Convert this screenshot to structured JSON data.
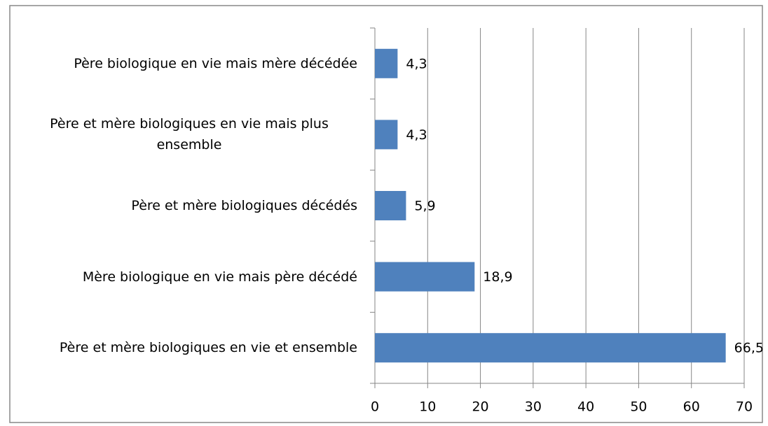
{
  "chart_data": {
    "type": "bar",
    "orientation": "horizontal",
    "categories": [
      "Père biologique en vie mais mère décédée",
      "Père et mère biologiques en vie mais plus ensemble",
      "Père et mère biologiques décédés",
      "Mère biologique en vie mais père décédé",
      "Père et mère biologiques en vie et ensemble"
    ],
    "values": [
      4.3,
      4.3,
      5.9,
      18.9,
      66.5
    ],
    "value_labels": [
      "4,3",
      "4,3",
      "5,9",
      "18,9",
      "66,5"
    ],
    "color": "#4f81bd",
    "xlim": [
      0,
      70
    ],
    "xticks": [
      0,
      10,
      20,
      30,
      40,
      50,
      60,
      70
    ],
    "grid": true
  }
}
